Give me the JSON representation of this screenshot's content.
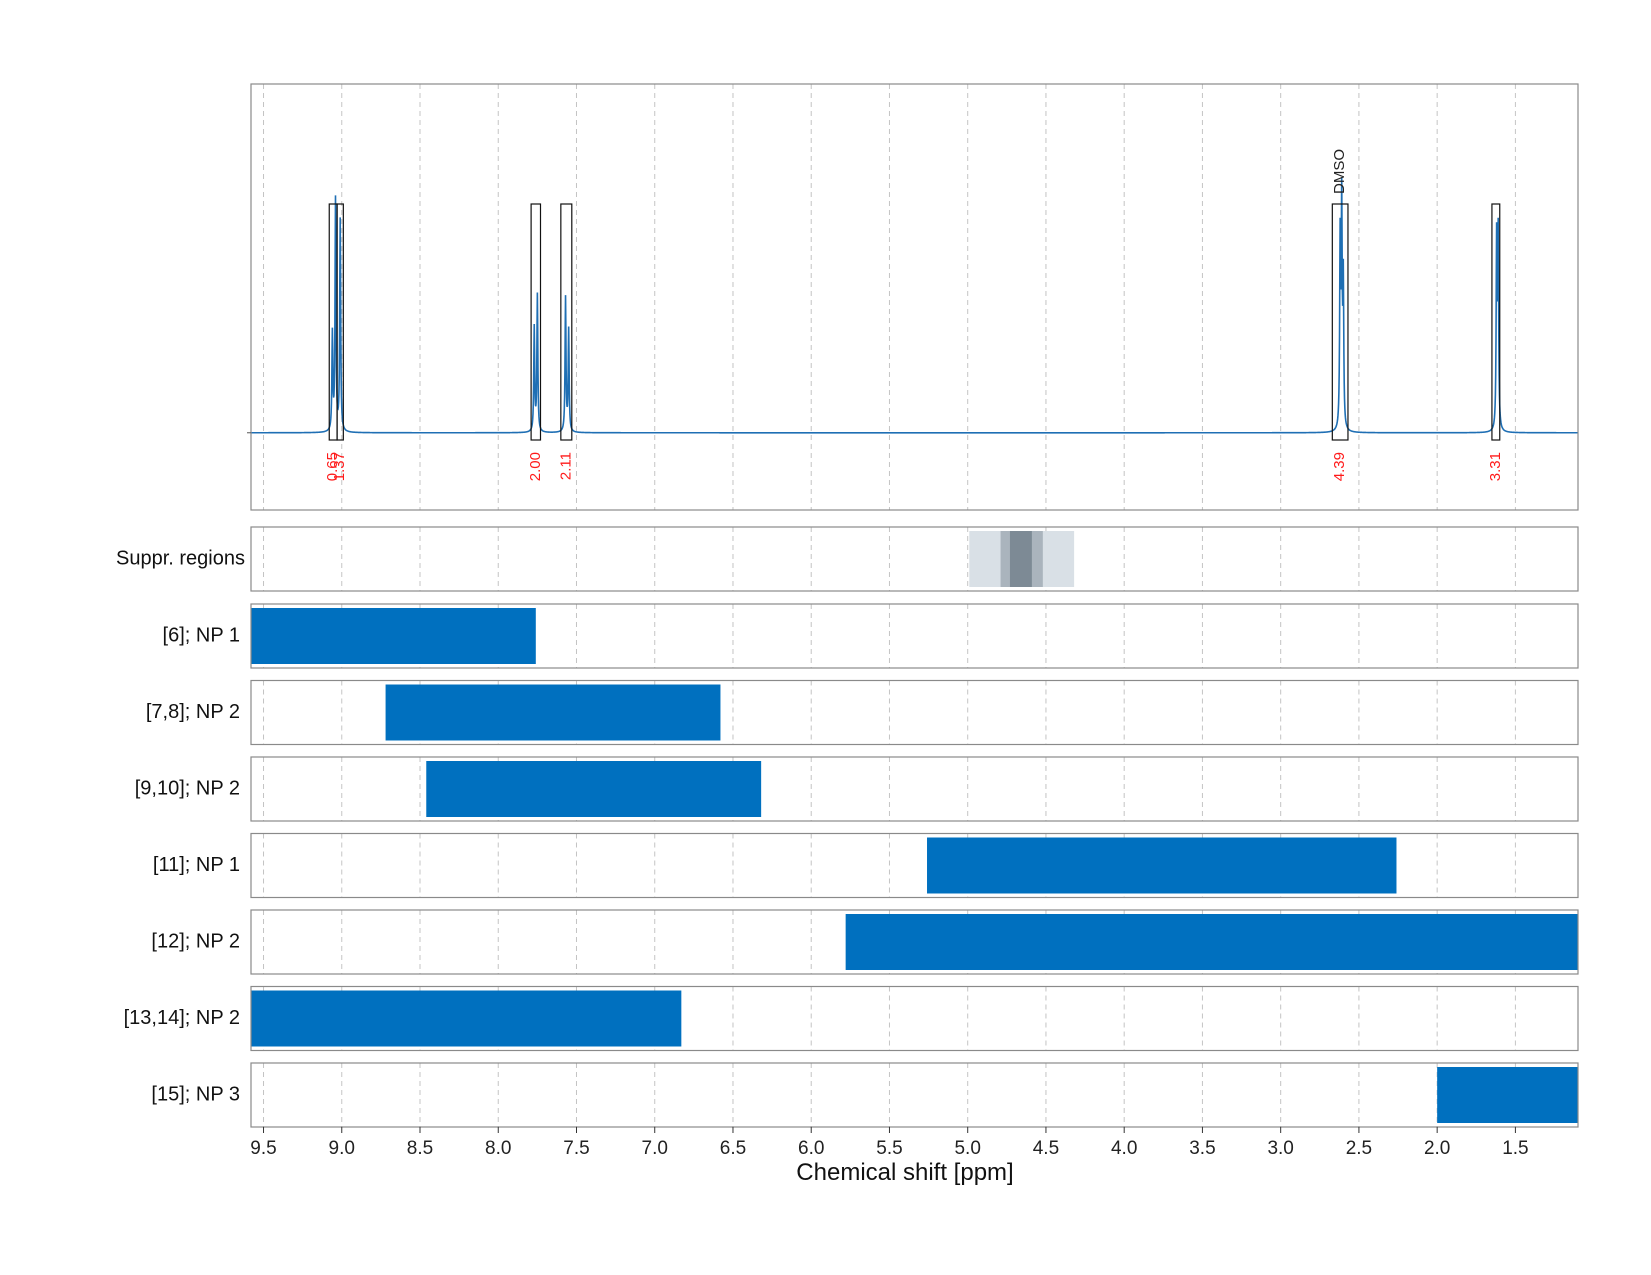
{
  "chart_data": {
    "type": "line",
    "xlabel": "Chemical shift [ppm]",
    "xlim": [
      9.58,
      1.1
    ],
    "x_ticks": [
      "9.5",
      "9.0",
      "8.5",
      "8.0",
      "7.5",
      "7.0",
      "6.5",
      "6.0",
      "5.5",
      "5.0",
      "4.5",
      "4.0",
      "3.5",
      "3.0",
      "2.5",
      "2.0",
      "1.5"
    ],
    "x_tick_values": [
      9.5,
      9.0,
      8.5,
      8.0,
      7.5,
      7.0,
      6.5,
      6.0,
      5.5,
      5.0,
      4.5,
      4.0,
      3.5,
      3.0,
      2.5,
      2.0,
      1.5
    ],
    "grid": true,
    "spectrum": {
      "color": "#1f6fb4",
      "baseline": 0,
      "ylim": [
        -0.31,
        1.4
      ],
      "peaks": [
        {
          "ppm": 9.06,
          "height": 0.39
        },
        {
          "ppm": 9.04,
          "height": 0.93
        },
        {
          "ppm": 9.01,
          "height": 0.85
        },
        {
          "ppm": 7.77,
          "height": 0.42
        },
        {
          "ppm": 7.75,
          "height": 0.55
        },
        {
          "ppm": 7.57,
          "height": 0.54
        },
        {
          "ppm": 7.55,
          "height": 0.41
        },
        {
          "ppm": 2.62,
          "height": 0.75
        },
        {
          "ppm": 2.61,
          "height": 0.88
        },
        {
          "ppm": 2.6,
          "height": 0.58
        },
        {
          "ppm": 1.62,
          "height": 0.76
        },
        {
          "ppm": 1.61,
          "height": 0.78
        }
      ]
    },
    "integration_regions": [
      {
        "from": 9.08,
        "to": 9.03,
        "integral": "0.65",
        "label": ""
      },
      {
        "from": 9.03,
        "to": 8.99,
        "integral": "1.37",
        "label": ""
      },
      {
        "from": 7.79,
        "to": 7.73,
        "integral": "2.00",
        "label": ""
      },
      {
        "from": 7.6,
        "to": 7.53,
        "integral": "2.11",
        "label": ""
      },
      {
        "from": 2.67,
        "to": 2.57,
        "integral": "4.39",
        "label": "DMSO"
      },
      {
        "from": 1.65,
        "to": 1.6,
        "integral": "3.31",
        "label": ""
      }
    ],
    "suppression": {
      "label": "Suppr. regions",
      "bands": [
        {
          "from": 4.99,
          "to": 4.32,
          "color": "#d9e0e6"
        },
        {
          "from": 4.79,
          "to": 4.52,
          "color": "#aab4bd"
        },
        {
          "from": 4.73,
          "to": 4.59,
          "color": "#7d8a95"
        }
      ]
    },
    "rows": [
      {
        "label": "[6]; NP 1",
        "from": 9.58,
        "to": 7.76
      },
      {
        "label": "[7,8]; NP 2",
        "from": 8.72,
        "to": 6.58
      },
      {
        "label": "[9,10]; NP 2",
        "from": 8.46,
        "to": 6.32
      },
      {
        "label": "[11]; NP 1",
        "from": 5.26,
        "to": 2.26
      },
      {
        "label": "[12]; NP 2",
        "from": 5.78,
        "to": 1.1
      },
      {
        "label": "[13,14]; NP 2",
        "from": 9.58,
        "to": 6.83
      },
      {
        "label": "[15]; NP 3",
        "from": 2.0,
        "to": 1.1
      }
    ],
    "bar_color": "#0070bf"
  }
}
